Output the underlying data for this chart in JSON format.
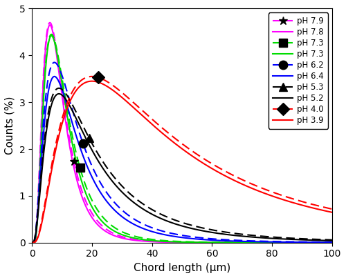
{
  "title": "",
  "xlabel": "Chord length (μm)",
  "ylabel": "Counts (%)",
  "xlim": [
    0,
    100
  ],
  "ylim": [
    0,
    5
  ],
  "xticks": [
    0,
    20,
    40,
    60,
    80,
    100
  ],
  "yticks": [
    0,
    1,
    2,
    3,
    4,
    5
  ],
  "curves": [
    {
      "label": "pH 7.9",
      "color": "#ff00ff",
      "linestyle": "dashed",
      "marker": "star",
      "marker_x": 14,
      "peak_x": 6,
      "peak_y": 4.7,
      "sigma": 0.6
    },
    {
      "label": "pH 7.8",
      "color": "#ff00ff",
      "linestyle": "solid",
      "marker": null,
      "marker_x": null,
      "peak_x": 6,
      "peak_y": 4.65,
      "sigma": 0.58
    },
    {
      "label": "pH 7.3",
      "color": "#00dd00",
      "linestyle": "dashed",
      "marker": "square",
      "marker_x": 16,
      "peak_x": 6.5,
      "peak_y": 4.45,
      "sigma": 0.63
    },
    {
      "label": "pH 7.3",
      "color": "#00dd00",
      "linestyle": "solid",
      "marker": null,
      "marker_x": null,
      "peak_x": 6.5,
      "peak_y": 4.42,
      "sigma": 0.6
    },
    {
      "label": "pH 6.2",
      "color": "#0000ff",
      "linestyle": "dashed",
      "marker": "circle",
      "marker_x": 17,
      "peak_x": 7.5,
      "peak_y": 3.85,
      "sigma": 0.75
    },
    {
      "label": "pH 6.4",
      "color": "#0000ff",
      "linestyle": "solid",
      "marker": null,
      "marker_x": null,
      "peak_x": 7.5,
      "peak_y": 3.55,
      "sigma": 0.72
    },
    {
      "label": "pH 5.3",
      "color": "#000000",
      "linestyle": "dashed",
      "marker": "triangle",
      "marker_x": 19,
      "peak_x": 9,
      "peak_y": 3.3,
      "sigma": 0.85
    },
    {
      "label": "pH 5.2",
      "color": "#000000",
      "linestyle": "solid",
      "marker": null,
      "marker_x": null,
      "peak_x": 9,
      "peak_y": 3.18,
      "sigma": 0.82
    },
    {
      "label": "pH 4.0",
      "color": "#ff0000",
      "linestyle": "dashed",
      "marker": "diamond",
      "marker_x": 22,
      "peak_x": 20,
      "peak_y": 3.55,
      "sigma": 0.9
    },
    {
      "label": "pH 3.9",
      "color": "#ff0000",
      "linestyle": "solid",
      "marker": null,
      "marker_x": null,
      "peak_x": 20,
      "peak_y": 3.45,
      "sigma": 0.88
    }
  ]
}
